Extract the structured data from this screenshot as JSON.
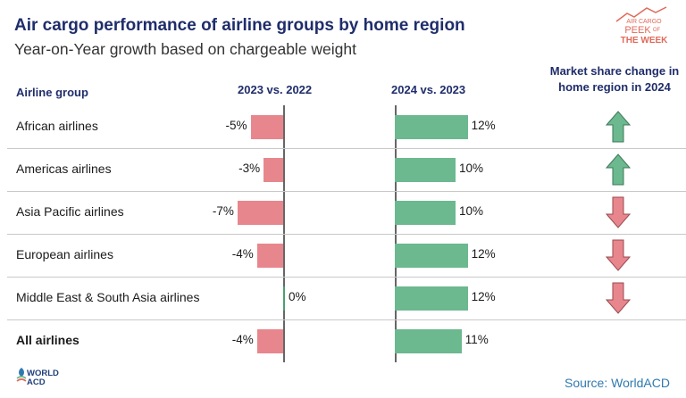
{
  "header": {
    "title": "Air cargo performance of airline groups by home region",
    "subtitle": "Year-on-Year growth based on chargeable weight"
  },
  "logo": {
    "line1": "AIR CARGO",
    "line2": "PEEK",
    "line3": "OF",
    "line4": "THE WEEK"
  },
  "columns": {
    "airline_group": "Airline group",
    "period1": "2023 vs. 2022",
    "period2": "2024 vs. 2023",
    "market_share_line1": "Market share change in",
    "market_share_line2": "home region in 2024"
  },
  "chart_data": {
    "type": "bar",
    "title": "Air cargo performance of airline groups by home region",
    "subtitle": "Year-on-Year growth based on chargeable weight",
    "categories": [
      "African airlines",
      "Americas airlines",
      "Asia Pacific airlines",
      "European airlines",
      "Middle East & South Asia airlines",
      "All airlines"
    ],
    "series": [
      {
        "name": "2023 vs. 2022",
        "values": [
          -5,
          -3,
          -7,
          -4,
          0,
          -4
        ],
        "labels": [
          "-5%",
          "-3%",
          "-7%",
          "-4%",
          "0%",
          "-4%"
        ]
      },
      {
        "name": "2024 vs. 2023",
        "values": [
          12,
          10,
          10,
          12,
          12,
          11
        ],
        "labels": [
          "12%",
          "10%",
          "10%",
          "12%",
          "12%",
          "11%"
        ]
      }
    ],
    "market_share_change_2024": [
      "up",
      "up",
      "down",
      "down",
      "down",
      null
    ],
    "units": "%"
  },
  "colors": {
    "negative": "#e8868d",
    "positive": "#6cb88f",
    "arrow_up": "#6cb88f",
    "arrow_down": "#e8868d",
    "title": "#1f2d6b",
    "source": "#2f7ab0"
  },
  "footer": {
    "source": "Source: WorldACD",
    "brand_line1": "WORLD",
    "brand_line2": "ACD"
  }
}
